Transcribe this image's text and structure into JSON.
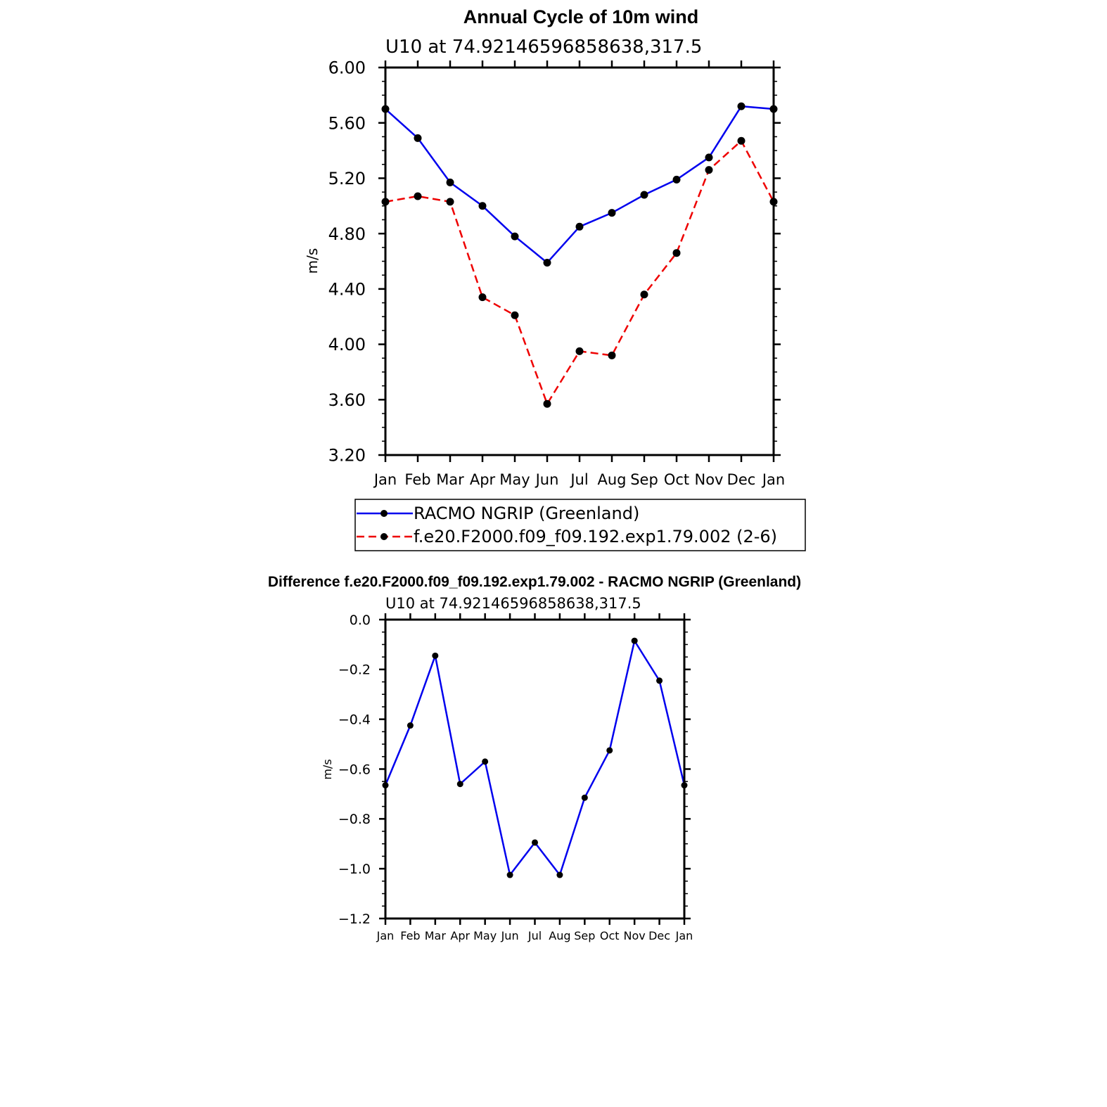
{
  "chart_data": [
    {
      "type": "line",
      "title": "Annual Cycle of 10m wind",
      "subtitle": "U10 at 74.92146596858638,317.5",
      "ylabel": "m/s",
      "xlabel": "",
      "categories": [
        "Jan",
        "Feb",
        "Mar",
        "Apr",
        "May",
        "Jun",
        "Jul",
        "Aug",
        "Sep",
        "Oct",
        "Nov",
        "Dec",
        "Jan"
      ],
      "ylim": [
        3.2,
        6.0
      ],
      "yticks": [
        "6.00",
        "5.60",
        "5.20",
        "4.80",
        "4.40",
        "4.00",
        "3.60",
        "3.20"
      ],
      "legend_position": "bottom",
      "series": [
        {
          "name": "RACMO NGRIP (Greenland)",
          "color": "#0000ee",
          "style": "solid",
          "values": [
            5.7,
            5.49,
            5.17,
            5.0,
            4.78,
            4.59,
            4.85,
            4.95,
            5.08,
            5.19,
            5.35,
            5.72,
            5.7
          ]
        },
        {
          "name": "f.e20.F2000.f09_f09.192.exp1.79.002 (2-6)",
          "color": "#ee0000",
          "style": "dashed",
          "values": [
            5.03,
            5.07,
            5.03,
            4.34,
            4.21,
            3.57,
            3.95,
            3.92,
            4.36,
            4.66,
            5.26,
            5.47,
            5.03
          ]
        }
      ]
    },
    {
      "type": "line",
      "title": "Difference f.e20.F2000.f09_f09.192.exp1.79.002 - RACMO NGRIP (Greenland)",
      "subtitle": "U10 at 74.92146596858638,317.5",
      "ylabel": "m/s",
      "xlabel": "",
      "categories": [
        "Jan",
        "Feb",
        "Mar",
        "Apr",
        "May",
        "Jun",
        "Jul",
        "Aug",
        "Sep",
        "Oct",
        "Nov",
        "Dec",
        "Jan"
      ],
      "ylim": [
        -1.2,
        0.0
      ],
      "yticks": [
        "0.0",
        "−0.2",
        "−0.4",
        "−0.6",
        "−0.8",
        "−1.0",
        "−1.2"
      ],
      "series": [
        {
          "name": "Difference",
          "color": "#0000ee",
          "style": "solid",
          "values": [
            -0.665,
            -0.425,
            -0.145,
            -0.66,
            -0.57,
            -1.025,
            -0.895,
            -1.025,
            -0.715,
            -0.525,
            -0.085,
            -0.245,
            -0.665
          ]
        }
      ]
    }
  ]
}
